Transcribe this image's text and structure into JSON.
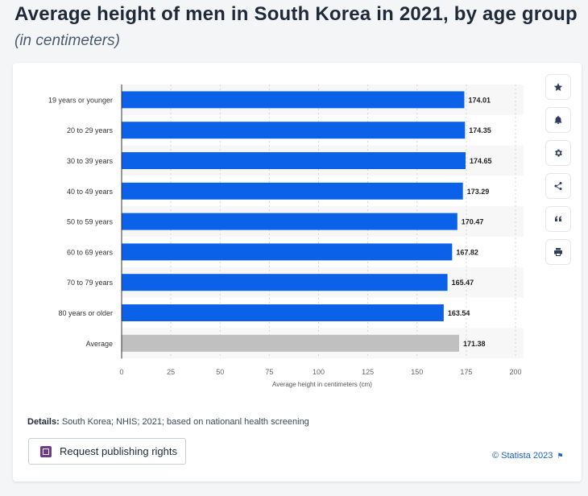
{
  "header": {
    "title": "Average height of men in South Korea in 2021, by age group",
    "subtitle": "(in centimeters)"
  },
  "chart_data": {
    "type": "bar",
    "orientation": "horizontal",
    "categories": [
      "19 years or younger",
      "20 to 29 years",
      "30 to 39 years",
      "40 to 49 years",
      "50 to 59 years",
      "60 to 69 years",
      "70 to 79 years",
      "80 years or older",
      "Average"
    ],
    "values": [
      174.01,
      174.35,
      174.65,
      173.29,
      170.47,
      167.82,
      165.47,
      163.54,
      171.38
    ],
    "value_labels": [
      "174.01",
      "174.35",
      "174.65",
      "173.29",
      "170.47",
      "167.82",
      "165.47",
      "163.54",
      "171.38"
    ],
    "xlabel": "Average height in centimeters (cm)",
    "xlim": [
      0,
      200
    ],
    "xticks": [
      0,
      25,
      50,
      75,
      100,
      125,
      150,
      175,
      200
    ],
    "grid": "vertical dashed",
    "colors": {
      "bar": "#0b62e8",
      "average_bar": "#c0c0c0"
    }
  },
  "toolbar": {
    "buttons": [
      {
        "name": "favorite-button",
        "icon": "star-icon"
      },
      {
        "name": "notification-button",
        "icon": "bell-icon"
      },
      {
        "name": "settings-button",
        "icon": "gear-icon"
      },
      {
        "name": "share-button",
        "icon": "share-icon"
      },
      {
        "name": "cite-button",
        "icon": "quote-icon"
      },
      {
        "name": "print-button",
        "icon": "print-icon"
      }
    ]
  },
  "footer": {
    "details_label": "Details:",
    "details_text": "South Korea; NHIS; 2021; based on nationanl health screening",
    "publish_label": "Request publishing rights",
    "copyright": "© Statista 2023"
  }
}
